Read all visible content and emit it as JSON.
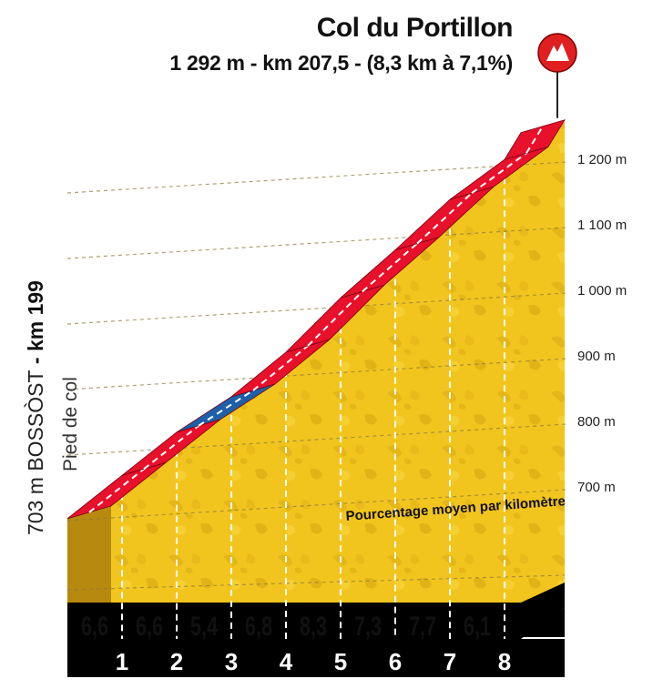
{
  "header": {
    "title": "Col du Portillon",
    "subtitle": "1 292 m - km 207,5 - (8,3 km à 7,1%)"
  },
  "start": {
    "altitude_town": "703 m BOSSÒST",
    "km_label": " - km 199",
    "foot_label": "Pied de col"
  },
  "summit_icon": {
    "icon": "mountain-summit-icon",
    "color": "#e02020"
  },
  "colors": {
    "road": "#e8102a",
    "road_highlight": "#1d5fa8",
    "terrain": "#f2c51e",
    "terrain_side": "#b8890f",
    "base": "#000000"
  },
  "chart_data": {
    "type": "area",
    "title": "Col du Portillon",
    "subtitle": "1 292 m - km 207,5 - (8,3 km à 7,1%)",
    "annotation": "Pourcentage moyen par kilomètre",
    "x_tick_labels": [
      "1",
      "2",
      "3",
      "4",
      "5",
      "6",
      "7",
      "8"
    ],
    "y_tick_labels": [
      "700 m",
      "800 m",
      "900 m",
      "1 000 m",
      "1 100 m",
      "1 200 m"
    ],
    "y_ticks": [
      700,
      800,
      900,
      1000,
      1100,
      1200
    ],
    "xlim": [
      0,
      8.3
    ],
    "ylim": [
      600,
      1300
    ],
    "grid": true,
    "x": [
      0,
      1,
      2,
      3,
      4,
      5,
      6,
      7,
      8,
      8.3
    ],
    "elevation": [
      703,
      769,
      835,
      889,
      957,
      1040,
      1113,
      1190,
      1251,
      1292
    ],
    "km_gradients": [
      "6,6",
      "6,6",
      "5,4",
      "6,8",
      "8,3",
      "7,3",
      "7,7",
      "6,1"
    ],
    "highlighted_segment": [
      2,
      3
    ]
  }
}
